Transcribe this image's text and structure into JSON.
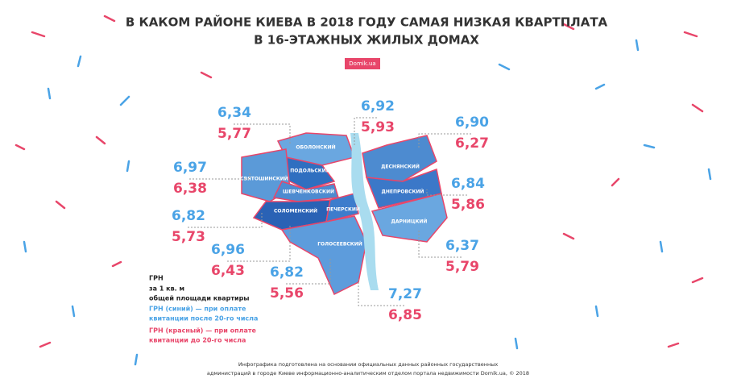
{
  "header": {
    "title_lines": [
      "В КАКОМ РАЙОНЕ КИЕВА В 2018 ГОДУ САМАЯ НИЗКАЯ КВАРТПЛАТА",
      "В 16-ЭТАЖНЫХ ЖИЛЫХ ДОМАХ"
    ],
    "badge": "Domik.ua"
  },
  "districts": [
    "ОБОЛОНСКИЙ",
    "ПОДОЛЬСКИЙ",
    "СВЯТОШИНСКИЙ",
    "ШЕВЧЕНКОВСКИЙ",
    "СОЛОМЕНСКИЙ",
    "ПЕЧЕРСКИЙ",
    "ГОЛОСЕЕВСКИЙ",
    "ДЕСНЯНСКИЙ",
    "ДНЕПРОВСКИЙ",
    "ДАРНИЦКИЙ"
  ],
  "callouts": [
    {
      "blue": "6,34",
      "red": "5,77"
    },
    {
      "blue": "6,92",
      "red": "5,93"
    },
    {
      "blue": "6,90",
      "red": "6,27"
    },
    {
      "blue": "6,97",
      "red": "6,38"
    },
    {
      "blue": "6,84",
      "red": "5,86"
    },
    {
      "blue": "6,82",
      "red": "5,73"
    },
    {
      "blue": "6,96",
      "red": "6,43"
    },
    {
      "blue": "6,37",
      "red": "5,79"
    },
    {
      "blue": "6,82",
      "red": "5,56"
    },
    {
      "blue": "7,27",
      "red": "6,85"
    }
  ],
  "legend": {
    "unit": "ГРН",
    "lines": [
      "за 1 кв. м",
      "общей площади квартиры"
    ],
    "blue_lines": [
      "ГРН (синий) — при оплате",
      "квитанции после 20-го числа"
    ],
    "red_lines": [
      "ГРН (красный) — при оплате",
      "квитанции до 20-го числа"
    ]
  },
  "footer": [
    "Инфографика подготовлена на основании официальных данных районных государственных",
    "администраций в городе Киеве информационно-аналитическим отделом портала недвижимости Domik.ua, © 2018"
  ]
}
